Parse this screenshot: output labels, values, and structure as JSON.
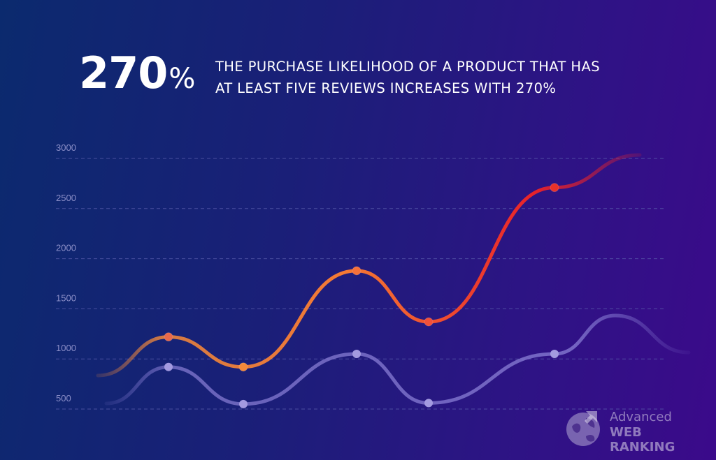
{
  "stat": {
    "number": "270",
    "unit": "%"
  },
  "headline": {
    "line1": "THE PURCHASE LIKELIHOOD OF A PRODUCT THAT HAS",
    "line2": "AT LEAST FIVE REVIEWS INCREASES WITH 270%"
  },
  "logo": {
    "line1": "Advanced",
    "line2": "WEB RANKING"
  },
  "colors": {
    "line_primary_start": "#f58a3a",
    "line_primary_end": "#e8222a",
    "line_secondary": "#8a7fd6",
    "gridline": "#5b5fae",
    "tick_label": "#8c8fc8"
  },
  "chart_data": {
    "type": "line",
    "yticks": [
      "3000",
      "2500",
      "2000",
      "1500",
      "1000",
      "500"
    ],
    "ylim": [
      500,
      3000
    ],
    "grid": true,
    "legend": "none",
    "series": [
      {
        "values": [
          1220,
          920,
          1880,
          1370,
          2710
        ],
        "color": "#f58a3a"
      },
      {
        "values": [
          920,
          550,
          1050,
          560,
          1050
        ],
        "color": "#8a7fd6"
      }
    ]
  }
}
